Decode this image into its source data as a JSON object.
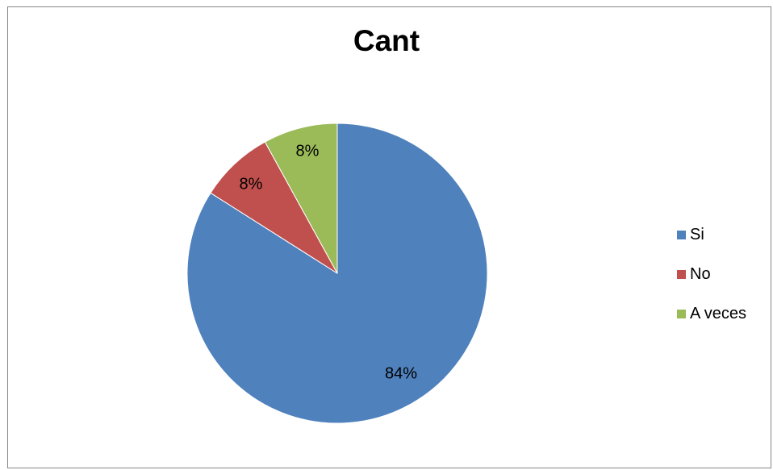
{
  "chart_data": {
    "type": "pie",
    "title": "Cant",
    "categories": [
      "Si",
      "No",
      "A veces"
    ],
    "values": [
      84,
      8,
      8
    ],
    "labels": [
      "84%",
      "8%",
      "8%"
    ],
    "colors": [
      "#4F81BD",
      "#C0504D",
      "#9BBB59"
    ],
    "legend_position": "right"
  }
}
